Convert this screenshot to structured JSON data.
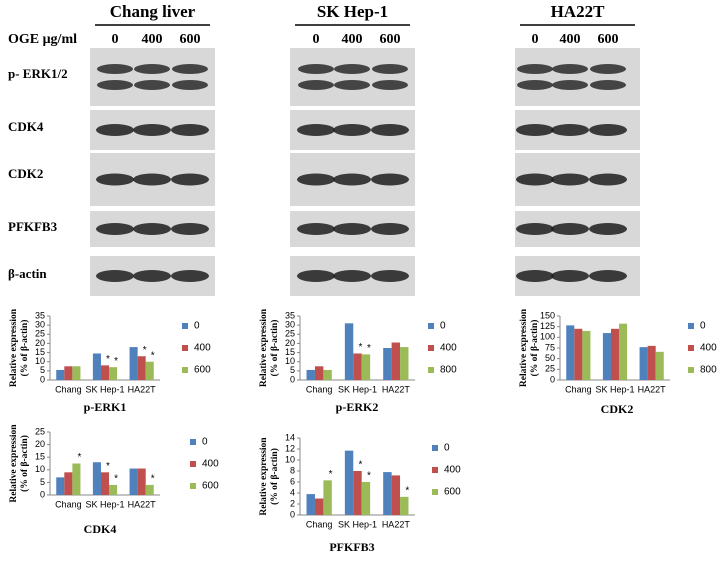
{
  "blots": {
    "dose_label": "OGE μg/ml",
    "columns": [
      {
        "name": "Chang liver",
        "doses": [
          "0",
          "400",
          "600"
        ]
      },
      {
        "name": "SK Hep-1",
        "doses": [
          "0",
          "400",
          "600"
        ]
      },
      {
        "name": "HA22T",
        "doses": [
          "0",
          "400",
          "600"
        ]
      }
    ],
    "rows": [
      "p- ERK1/2",
      "CDK4",
      "CDK2",
      "PFKFB3",
      "β-actin"
    ]
  },
  "chart_data": [
    {
      "type": "bar",
      "title": "p-ERK1",
      "y_label": [
        "Relative expression",
        "(% of β-actin)"
      ],
      "categories": [
        "Chang",
        "SK Hep-1",
        "HA22T"
      ],
      "ylim": [
        0,
        35
      ],
      "yticks": [
        0,
        5,
        10,
        15,
        20,
        25,
        30,
        35
      ],
      "series": [
        {
          "name": "0",
          "color": "#4f81bd",
          "values": [
            5.5,
            14.5,
            18
          ],
          "annotations": [
            null,
            null,
            null
          ]
        },
        {
          "name": "400",
          "color": "#c0504d",
          "values": [
            7.5,
            8,
            13
          ],
          "annotations": [
            null,
            "*",
            "*"
          ]
        },
        {
          "name": "600",
          "color": "#9bbb59",
          "values": [
            7.5,
            7,
            10
          ],
          "annotations": [
            null,
            "*",
            "*"
          ]
        }
      ]
    },
    {
      "type": "bar",
      "title": "p-ERK2",
      "y_label": [
        "Relative expression",
        "(% of β-actin)"
      ],
      "categories": [
        "Chang",
        "SK Hep-1",
        "HA22T"
      ],
      "ylim": [
        0,
        35
      ],
      "yticks": [
        0,
        5,
        10,
        15,
        20,
        25,
        30,
        35
      ],
      "series": [
        {
          "name": "0",
          "color": "#4f81bd",
          "values": [
            5.5,
            31,
            17.5
          ],
          "annotations": [
            null,
            null,
            null
          ]
        },
        {
          "name": "400",
          "color": "#c0504d",
          "values": [
            7.5,
            14.5,
            20.5
          ],
          "annotations": [
            null,
            "*",
            null
          ]
        },
        {
          "name": "800",
          "color": "#9bbb59",
          "values": [
            5.5,
            14,
            18
          ],
          "annotations": [
            null,
            "*",
            null
          ]
        }
      ]
    },
    {
      "type": "bar",
      "title": "CDK2",
      "y_label": [
        "Relative expression",
        "(% of β-actin)"
      ],
      "categories": [
        "Chang",
        "SK Hep-1",
        "HA22T"
      ],
      "ylim": [
        0,
        150
      ],
      "yticks": [
        0,
        25,
        50,
        75,
        100,
        125,
        150
      ],
      "series": [
        {
          "name": "0",
          "color": "#4f81bd",
          "values": [
            128,
            110,
            77
          ],
          "annotations": [
            null,
            null,
            null
          ]
        },
        {
          "name": "400",
          "color": "#c0504d",
          "values": [
            120,
            120,
            80
          ],
          "annotations": [
            null,
            null,
            null
          ]
        },
        {
          "name": "800",
          "color": "#9bbb59",
          "values": [
            115,
            132,
            66
          ],
          "annotations": [
            null,
            null,
            null
          ]
        }
      ]
    },
    {
      "type": "bar",
      "title": "CDK4",
      "y_label": [
        "Relative expression",
        "(% of β-actin)"
      ],
      "categories": [
        "Chang",
        "SK Hep-1",
        "HA22T"
      ],
      "ylim": [
        0,
        25
      ],
      "yticks": [
        0,
        5,
        10,
        15,
        20,
        25
      ],
      "series": [
        {
          "name": "0",
          "color": "#4f81bd",
          "values": [
            7,
            13,
            10.5
          ],
          "annotations": [
            null,
            null,
            null
          ]
        },
        {
          "name": "400",
          "color": "#c0504d",
          "values": [
            9,
            9,
            10.5
          ],
          "annotations": [
            null,
            "*",
            null
          ]
        },
        {
          "name": "600",
          "color": "#9bbb59",
          "values": [
            12.5,
            4,
            4
          ],
          "annotations": [
            "*",
            "*",
            "*"
          ]
        }
      ]
    },
    {
      "type": "bar",
      "title": "PFKFB3",
      "y_label": [
        "Relative expression",
        "(% of β-actin)"
      ],
      "categories": [
        "Chang",
        "SK Hep-1",
        "HA22T"
      ],
      "ylim": [
        0,
        14
      ],
      "yticks": [
        0,
        2,
        4,
        6,
        8,
        10,
        12,
        14
      ],
      "series": [
        {
          "name": "0",
          "color": "#4f81bd",
          "values": [
            3.8,
            11.7,
            7.8
          ],
          "annotations": [
            null,
            null,
            null
          ]
        },
        {
          "name": "400",
          "color": "#c0504d",
          "values": [
            3,
            8,
            7.2
          ],
          "annotations": [
            null,
            "*",
            null
          ]
        },
        {
          "name": "600",
          "color": "#9bbb59",
          "values": [
            6.3,
            6,
            3.3
          ],
          "annotations": [
            "*",
            "*",
            "*"
          ]
        }
      ]
    }
  ]
}
